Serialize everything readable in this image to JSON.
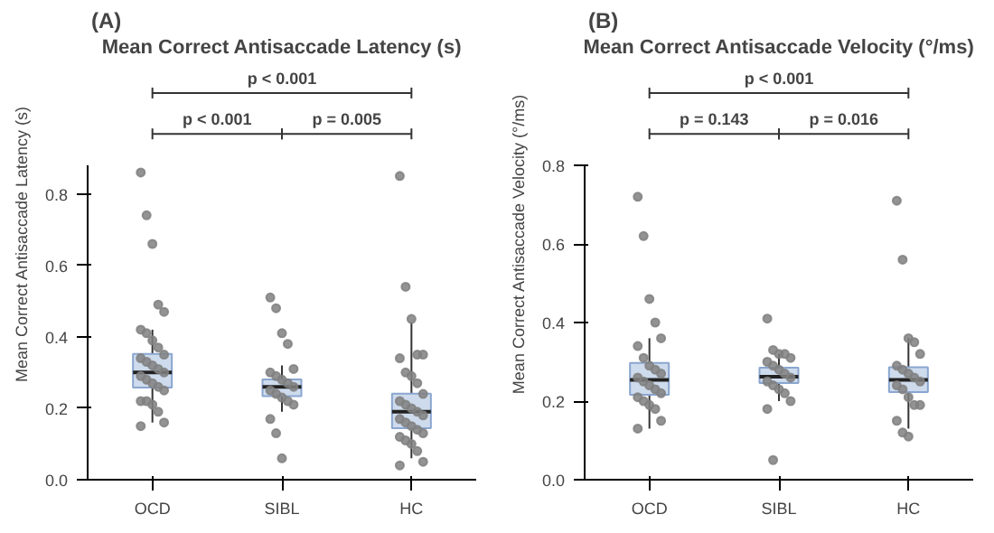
{
  "chart_data": [
    {
      "type": "box",
      "title": "Mean Correct Antisaccade Latency (s)",
      "ylabel": "Mean Correct Antisaccade Latency (s)",
      "categories": [
        "OCD",
        "SIBL",
        "HC"
      ],
      "color": "#c6d5ea",
      "boxes": [
        {
          "low": 0.16,
          "q1": 0.258,
          "median": 0.3,
          "q3": 0.352,
          "high": 0.42
        },
        {
          "low": 0.19,
          "q1": 0.234,
          "median": 0.26,
          "q3": 0.281,
          "high": 0.32
        },
        {
          "low": 0.06,
          "q1": 0.144,
          "median": 0.19,
          "q3": 0.241,
          "high": 0.44
        }
      ],
      "series": [
        {
          "type": "scatter",
          "color": "#808080",
          "x": [
            "OCD",
            "OCD",
            "OCD",
            "OCD",
            "OCD",
            "OCD",
            "OCD",
            "OCD",
            "OCD",
            "OCD",
            "OCD",
            "OCD",
            "OCD",
            "OCD",
            "OCD",
            "OCD",
            "OCD",
            "OCD",
            "OCD",
            "OCD",
            "OCD",
            "OCD",
            "OCD",
            "OCD",
            "OCD",
            "OCD"
          ],
          "values": [
            0.86,
            0.74,
            0.66,
            0.49,
            0.47,
            0.42,
            0.41,
            0.39,
            0.37,
            0.35,
            0.34,
            0.33,
            0.32,
            0.31,
            0.3,
            0.29,
            0.28,
            0.27,
            0.26,
            0.25,
            0.22,
            0.22,
            0.21,
            0.19,
            0.16,
            0.15
          ]
        },
        {
          "type": "scatter",
          "color": "#808080",
          "x": [
            "SIBL",
            "SIBL",
            "SIBL",
            "SIBL",
            "SIBL",
            "SIBL",
            "SIBL",
            "SIBL",
            "SIBL",
            "SIBL",
            "SIBL",
            "SIBL",
            "SIBL",
            "SIBL",
            "SIBL",
            "SIBL",
            "SIBL",
            "SIBL"
          ],
          "values": [
            0.51,
            0.48,
            0.41,
            0.38,
            0.31,
            0.3,
            0.29,
            0.28,
            0.27,
            0.26,
            0.25,
            0.24,
            0.23,
            0.22,
            0.21,
            0.17,
            0.13,
            0.06
          ]
        },
        {
          "type": "scatter",
          "color": "#808080",
          "x": [
            "HC",
            "HC",
            "HC",
            "HC",
            "HC",
            "HC",
            "HC",
            "HC",
            "HC",
            "HC",
            "HC",
            "HC",
            "HC",
            "HC",
            "HC",
            "HC",
            "HC",
            "HC",
            "HC",
            "HC",
            "HC",
            "HC",
            "HC",
            "HC",
            "HC",
            "HC"
          ],
          "values": [
            0.85,
            0.54,
            0.45,
            0.35,
            0.35,
            0.34,
            0.3,
            0.29,
            0.27,
            0.24,
            0.22,
            0.21,
            0.2,
            0.19,
            0.18,
            0.17,
            0.16,
            0.15,
            0.14,
            0.13,
            0.12,
            0.11,
            0.1,
            0.08,
            0.05,
            0.04
          ]
        }
      ],
      "ylim": [
        0,
        0.88
      ],
      "yticks": [
        {
          "value": 0,
          "label": "0.0"
        },
        0.2,
        0.4,
        0.6,
        0.8
      ],
      "grid": false,
      "annotations": [
        "(A)",
        "p < 0.001",
        "p < 0.001",
        "p = 0.005"
      ]
    },
    {
      "type": "box",
      "title": "Mean Correct Antisaccade Velocity (°/ms)",
      "ylabel": "Mean Correct Antisaccade Velocity (°/ms)",
      "categories": [
        "OCD",
        "SIBL",
        "HC"
      ],
      "color": "#c6d5ea",
      "boxes": [
        {
          "low": 0.13,
          "q1": 0.216,
          "median": 0.254,
          "q3": 0.297,
          "high": 0.36
        },
        {
          "low": 0.2,
          "q1": 0.246,
          "median": 0.262,
          "q3": 0.285,
          "high": 0.32
        },
        {
          "low": 0.13,
          "q1": 0.223,
          "median": 0.254,
          "q3": 0.286,
          "high": 0.36
        }
      ],
      "series": [
        {
          "type": "scatter",
          "color": "#808080",
          "x": [
            "OCD",
            "OCD",
            "OCD",
            "OCD",
            "OCD",
            "OCD",
            "OCD",
            "OCD",
            "OCD",
            "OCD",
            "OCD",
            "OCD",
            "OCD",
            "OCD",
            "OCD",
            "OCD",
            "OCD",
            "OCD",
            "OCD",
            "OCD",
            "OCD"
          ],
          "values": [
            0.72,
            0.62,
            0.46,
            0.4,
            0.36,
            0.34,
            0.31,
            0.29,
            0.28,
            0.27,
            0.26,
            0.25,
            0.24,
            0.23,
            0.22,
            0.21,
            0.2,
            0.19,
            0.18,
            0.15,
            0.13
          ]
        },
        {
          "type": "scatter",
          "color": "#808080",
          "x": [
            "SIBL",
            "SIBL",
            "SIBL",
            "SIBL",
            "SIBL",
            "SIBL",
            "SIBL",
            "SIBL",
            "SIBL",
            "SIBL",
            "SIBL",
            "SIBL",
            "SIBL",
            "SIBL",
            "SIBL",
            "SIBL",
            "SIBL"
          ],
          "values": [
            0.41,
            0.33,
            0.32,
            0.32,
            0.31,
            0.3,
            0.29,
            0.28,
            0.27,
            0.26,
            0.25,
            0.24,
            0.23,
            0.22,
            0.2,
            0.18,
            0.05
          ]
        },
        {
          "type": "scatter",
          "color": "#808080",
          "x": [
            "HC",
            "HC",
            "HC",
            "HC",
            "HC",
            "HC",
            "HC",
            "HC",
            "HC",
            "HC",
            "HC",
            "HC",
            "HC",
            "HC",
            "HC",
            "HC",
            "HC",
            "HC"
          ],
          "values": [
            0.71,
            0.56,
            0.36,
            0.35,
            0.32,
            0.29,
            0.28,
            0.27,
            0.26,
            0.25,
            0.24,
            0.23,
            0.21,
            0.19,
            0.19,
            0.15,
            0.12,
            0.11
          ]
        }
      ],
      "ylim": [
        0,
        0.8
      ],
      "yticks": [
        {
          "value": 0,
          "label": "0.0"
        },
        0.2,
        0.4,
        0.6,
        0.8
      ],
      "grid": false,
      "annotations": [
        "(B)",
        "p < 0.001",
        "p = 0.143",
        "p = 0.016"
      ]
    }
  ]
}
